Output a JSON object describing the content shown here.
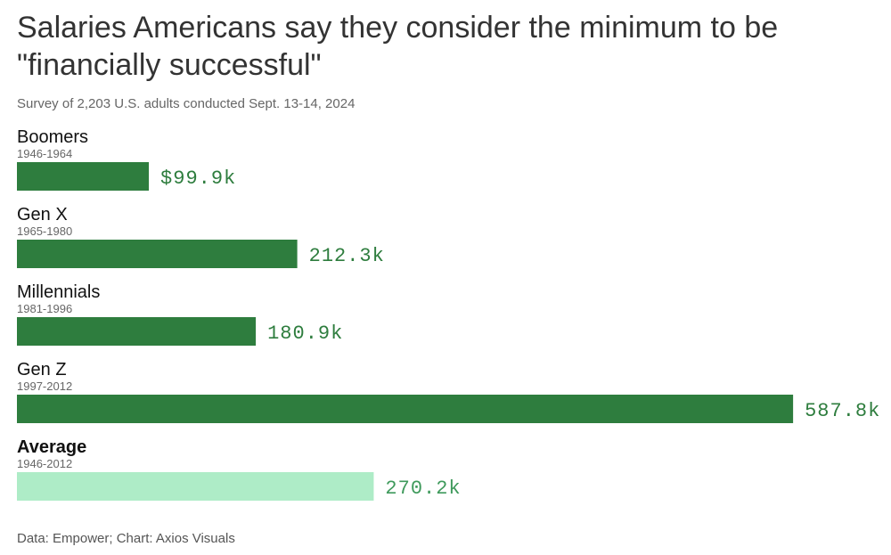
{
  "title": "Salaries Americans say they consider the minimum to be \"financially successful\"",
  "subtitle": "Survey of 2,203 U.S. adults conducted Sept. 13-14, 2024",
  "source": "Data: Empower; Chart: Axios Visuals",
  "colors": {
    "primary_bar": "#2e7d3e",
    "primary_label": "#2e7d3e",
    "average_bar": "#aeecc7",
    "average_label": "#3f9a5c",
    "category_text": "#111111",
    "range_text": "#666666"
  },
  "chart_data": {
    "type": "bar",
    "orientation": "horizontal",
    "title": "Salaries Americans say they consider the minimum to be \"financially successful\"",
    "xlabel": "",
    "ylabel": "",
    "xlim": [
      0,
      620
    ],
    "units": "thousand USD",
    "categories": [
      "Boomers",
      "Gen X",
      "Millennials",
      "Gen Z",
      "Average"
    ],
    "subcategories": [
      "1946-1964",
      "1965-1980",
      "1981-1996",
      "1997-2012",
      "1946-2012"
    ],
    "values": [
      99.9,
      212.3,
      180.9,
      587.8,
      270.2
    ],
    "value_labels": [
      "$99.9k",
      "212.3k",
      "180.9k",
      "587.8k",
      "270.2k"
    ],
    "highlight": [
      false,
      false,
      false,
      false,
      true
    ]
  }
}
